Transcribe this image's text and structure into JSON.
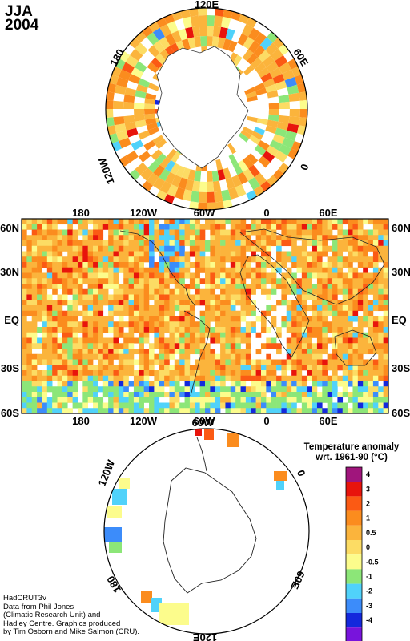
{
  "season": {
    "label": "JJA",
    "year": "2004"
  },
  "north_polar": {
    "lon_labels": [
      "120E",
      "60E",
      "0",
      "120W",
      "180"
    ]
  },
  "main_map": {
    "lat_labels_left": [
      "60N",
      "30N",
      "EQ",
      "30S",
      "60S"
    ],
    "lat_labels_right": [
      "60N",
      "30N",
      "EQ",
      "30S",
      "60S"
    ],
    "lon_labels_top": [
      "180",
      "120W",
      "60W",
      "0",
      "60E"
    ],
    "lon_labels_bottom": [
      "180",
      "120W",
      "60W",
      "0",
      "60E"
    ]
  },
  "south_polar": {
    "lon_labels": [
      "60W",
      "0",
      "120W",
      "180",
      "60E",
      "120E"
    ]
  },
  "legend": {
    "title_line1": "Temperature anomaly",
    "title_line2": "wrt. 1961-90  (°C)",
    "bins": [
      {
        "label": "4",
        "color": "#a0157c"
      },
      {
        "label": "3",
        "color": "#e8140c"
      },
      {
        "label": "2",
        "color": "#fb5a14"
      },
      {
        "label": "1",
        "color": "#fb8c1e"
      },
      {
        "label": "0.5",
        "color": "#fbb43c"
      },
      {
        "label": "0",
        "color": "#fcdc64"
      },
      {
        "label": "-0.5",
        "color": "#fcfc8c"
      },
      {
        "label": "-1",
        "color": "#8ce678"
      },
      {
        "label": "-2",
        "color": "#50d2fa"
      },
      {
        "label": "-3",
        "color": "#3c8cfa"
      },
      {
        "label": "-4",
        "color": "#1428dc"
      },
      {
        "label": "",
        "color": "#7814dc"
      }
    ]
  },
  "credits": {
    "line1": "HadCRUT3v",
    "line2": "Data from Phil Jones",
    "line3": "(Climatic Research Unit) and",
    "line4": "Hadley Centre.  Graphics produced",
    "line5": "by Tim Osborn and Mike Salmon (CRU)."
  }
}
